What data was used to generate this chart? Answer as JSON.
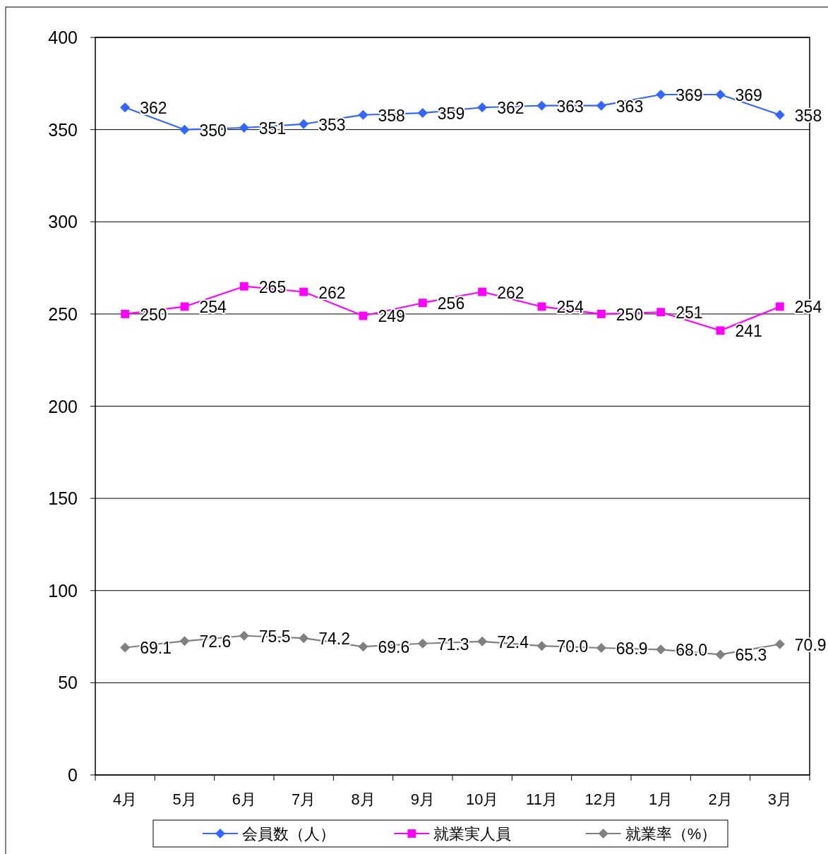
{
  "chart_data": {
    "type": "line",
    "categories": [
      "4月",
      "5月",
      "6月",
      "7月",
      "8月",
      "9月",
      "10月",
      "11月",
      "12月",
      "1月",
      "2月",
      "3月"
    ],
    "series": [
      {
        "name": "会員数（人）",
        "color": "#3366ff",
        "marker": "diamond",
        "values": [
          362,
          350,
          351,
          353,
          358,
          359,
          362,
          363,
          363,
          369,
          369,
          358
        ],
        "value_labels": [
          "362",
          "350",
          "351",
          "353",
          "358",
          "359",
          "362",
          "363",
          "363",
          "369",
          "369",
          "358"
        ]
      },
      {
        "name": "就業実人員",
        "color": "#ff00ff",
        "marker": "square",
        "values": [
          250,
          254,
          265,
          262,
          249,
          256,
          262,
          254,
          250,
          251,
          241,
          254
        ],
        "value_labels": [
          "250",
          "254",
          "265",
          "262",
          "249",
          "256",
          "262",
          "254",
          "250",
          "251",
          "241",
          "254"
        ]
      },
      {
        "name": "就業率（%）",
        "color": "#808080",
        "marker": "diamond",
        "values": [
          69.1,
          72.6,
          75.5,
          74.2,
          69.6,
          71.3,
          72.4,
          70.0,
          68.9,
          68.0,
          65.3,
          70.9
        ],
        "value_labels": [
          "69.1",
          "72.6",
          "75.5",
          "74.2",
          "69.6",
          "71.3",
          "72.4",
          "70.0",
          "68.9",
          "68.0",
          "65.3",
          "70.9"
        ]
      }
    ],
    "ylim": [
      0,
      400
    ],
    "yticks": [
      0,
      50,
      100,
      150,
      200,
      250,
      300,
      350,
      400
    ],
    "grid": "y",
    "legend": "bottom"
  }
}
